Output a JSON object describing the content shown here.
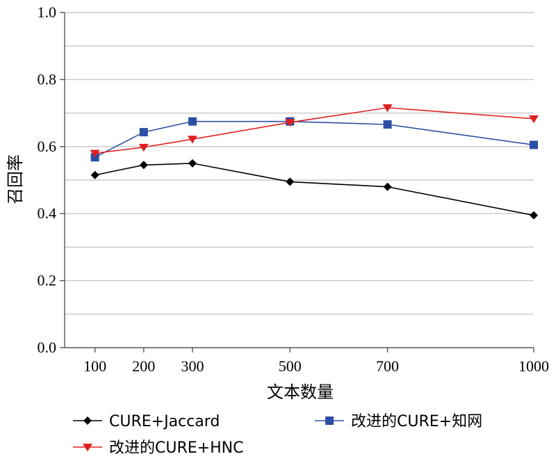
{
  "chart_data": {
    "type": "line",
    "xlabel": "文本数量",
    "ylabel": "召回率",
    "x": [
      100,
      200,
      300,
      500,
      700,
      1000
    ],
    "x_tick_labels": [
      "100",
      "200",
      "300",
      "500",
      "700",
      "1000"
    ],
    "xlim": [
      0,
      1000
    ],
    "ylim": [
      0.0,
      1.0
    ],
    "y_ticks": [
      0.0,
      0.2,
      0.4,
      0.6,
      0.8,
      1.0
    ],
    "y_tick_labels": [
      "0.0",
      "0.2",
      "0.4",
      "0.6",
      "0.8",
      "1.0"
    ],
    "grid": "horizontal",
    "legend_position": "bottom",
    "series": [
      {
        "name": "CURE+Jaccard",
        "marker": "diamond",
        "color": "#000000",
        "values": [
          0.515,
          0.545,
          0.55,
          0.495,
          0.48,
          0.395
        ]
      },
      {
        "name": "改进的CURE+知网",
        "marker": "square",
        "color": "#2b4fa3",
        "values": [
          0.568,
          0.643,
          0.675,
          0.675,
          0.666,
          0.605
        ]
      },
      {
        "name": "改进的CURE+HNC",
        "marker": "triangle-down",
        "color": "#e02020",
        "values": [
          0.58,
          0.598,
          0.622,
          0.672,
          0.716,
          0.683
        ]
      }
    ]
  }
}
